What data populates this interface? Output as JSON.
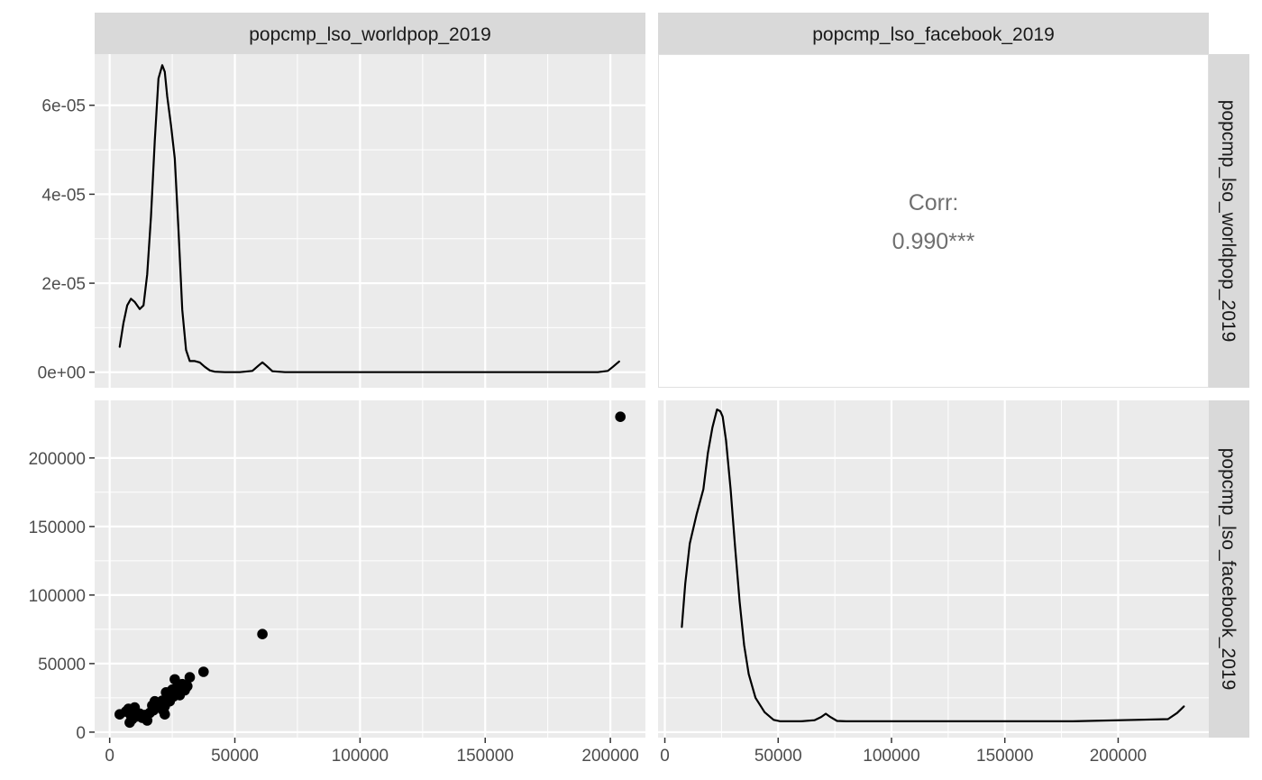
{
  "chart_data": {
    "type": "scatter",
    "layout": "pairs-matrix",
    "variables": [
      "popcmp_lso_worldpop_2019",
      "popcmp_lso_facebook_2019"
    ],
    "grid": true,
    "strips": {
      "top": [
        "popcmp_lso_worldpop_2019",
        "popcmp_lso_facebook_2019"
      ],
      "right": [
        "popcmp_lso_worldpop_2019",
        "popcmp_lso_facebook_2019"
      ]
    },
    "correlation": {
      "label": "Corr:",
      "value": "0.990***"
    },
    "x_worldpop": {
      "range": [
        -6000,
        214000
      ],
      "ticks": [
        0,
        50000,
        100000,
        150000,
        200000
      ],
      "tick_labels": [
        "0",
        "50000",
        "100000",
        "150000",
        "200000"
      ]
    },
    "x_facebook": {
      "range": [
        -3000,
        240000
      ],
      "ticks": [
        0,
        50000,
        100000,
        150000,
        200000
      ],
      "tick_labels": [
        "0",
        "50000",
        "100000",
        "150000",
        "200000"
      ]
    },
    "density_worldpop": {
      "ylim": [
        -3.5e-06,
        7.15e-05
      ],
      "yticks": [
        0,
        2e-05,
        4e-05,
        6e-05
      ],
      "ytick_labels": [
        "0e+00",
        "2e-05",
        "4e-05",
        "6e-05"
      ],
      "x": [
        4000,
        5500,
        7000,
        8500,
        10000,
        12000,
        13500,
        15000,
        16500,
        18000,
        19500,
        21000,
        22000,
        23000,
        24500,
        26000,
        27500,
        29000,
        30500,
        32000,
        34000,
        36000,
        38000,
        40000,
        42000,
        46000,
        52000,
        57000,
        59500,
        61000,
        62500,
        65000,
        70000,
        100000,
        150000,
        195000,
        199000,
        201000,
        203500
      ],
      "y": [
        5.7e-06,
        1.1e-05,
        1.5e-05,
        1.65e-05,
        1.58e-05,
        1.42e-05,
        1.5e-05,
        2.2e-05,
        3.5e-05,
        5.2e-05,
        6.6e-05,
        6.9e-05,
        6.75e-05,
        6.2e-05,
        5.55e-05,
        4.8e-05,
        3.2e-05,
        1.4e-05,
        5e-06,
        2.5e-06,
        2.5e-06,
        2.2e-06,
        1.2e-06,
        4e-07,
        1e-07,
        0.0,
        0.0,
        3e-07,
        1.5e-06,
        2.2e-06,
        1.5e-06,
        2e-07,
        0.0,
        0.0,
        0.0,
        0.0,
        3e-07,
        1.2e-06,
        2.4e-06
      ]
    },
    "density_facebook": {
      "ylim": [
        -4.5e-06,
        8.85e-05
      ],
      "x": [
        7500,
        9000,
        11000,
        14000,
        17000,
        19000,
        21000,
        23000,
        24500,
        25500,
        27000,
        29000,
        31000,
        33000,
        35000,
        37000,
        40000,
        44000,
        48000,
        51000,
        54000,
        60000,
        66000,
        69000,
        71000,
        73000,
        76000,
        80000,
        120000,
        180000,
        222000,
        226000,
        229000
      ],
      "y": [
        2.6e-05,
        3.8e-05,
        4.9e-05,
        5.7e-05,
        6.4e-05,
        7.4e-05,
        8.1e-05,
        8.6e-05,
        8.55e-05,
        8.4e-05,
        7.75e-05,
        6.4e-05,
        4.8e-05,
        3.3e-05,
        2.1e-05,
        1.3e-05,
        6.5e-06,
        2.5e-06,
        4e-07,
        0.0,
        0.0,
        0.0,
        3e-07,
        1.2e-06,
        2.1e-06,
        1.2e-06,
        1e-07,
        0.0,
        0.0,
        0.0,
        6e-07,
        2.3e-06,
        4.1e-06
      ]
    },
    "scatter": {
      "xlabel": "popcmp_lso_worldpop_2019",
      "ylabel": "popcmp_lso_facebook_2019",
      "ylim": [
        -4000,
        242000
      ],
      "yticks": [
        0,
        50000,
        100000,
        150000,
        200000
      ],
      "ytick_labels": [
        "0",
        "50000",
        "100000",
        "150000",
        "200000"
      ],
      "points": [
        [
          4000,
          13000
        ],
        [
          6500,
          15000
        ],
        [
          7500,
          17000
        ],
        [
          8000,
          7000
        ],
        [
          8500,
          12000
        ],
        [
          9000,
          9500
        ],
        [
          9500,
          16500
        ],
        [
          10000,
          18000
        ],
        [
          11000,
          11500
        ],
        [
          12000,
          13500
        ],
        [
          13000,
          10500
        ],
        [
          14000,
          12500
        ],
        [
          15000,
          8500
        ],
        [
          16000,
          14000
        ],
        [
          17000,
          19500
        ],
        [
          17500,
          16000
        ],
        [
          18000,
          22500
        ],
        [
          19000,
          20000
        ],
        [
          19500,
          18000
        ],
        [
          20000,
          21000
        ],
        [
          21000,
          23000
        ],
        [
          21500,
          15500
        ],
        [
          22000,
          19000
        ],
        [
          22000,
          13000
        ],
        [
          22500,
          29000
        ],
        [
          23000,
          25000
        ],
        [
          23500,
          27000
        ],
        [
          24000,
          22500
        ],
        [
          25000,
          31000
        ],
        [
          25500,
          26000
        ],
        [
          26000,
          38500
        ],
        [
          26500,
          28500
        ],
        [
          27000,
          33000
        ],
        [
          27500,
          29500
        ],
        [
          28000,
          27000
        ],
        [
          29000,
          35000
        ],
        [
          29500,
          32000
        ],
        [
          30000,
          30500
        ],
        [
          31000,
          33500
        ],
        [
          32000,
          40000
        ],
        [
          37500,
          44000
        ],
        [
          61000,
          71500
        ],
        [
          204000,
          230000
        ]
      ]
    }
  }
}
